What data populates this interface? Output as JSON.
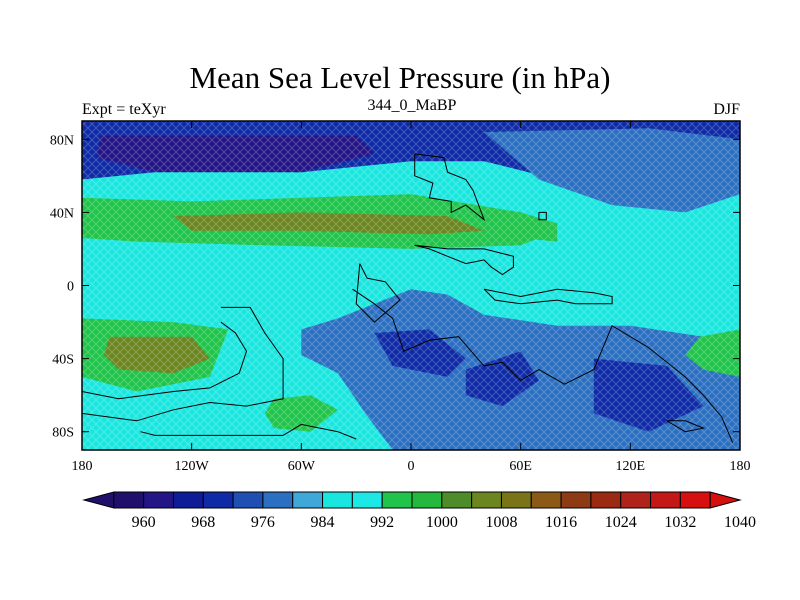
{
  "title": "Mean Sea Level Pressure (in hPa)",
  "left_string": "Expt = teXyr",
  "center_string": "344_0_MaBP",
  "right_string": "DJF",
  "map": {
    "projection": "cylindrical-equidistant",
    "lon_range": [
      -180,
      180
    ],
    "lat_range": [
      -90,
      90
    ],
    "x_ticks": [
      {
        "lon": -180,
        "label": "180"
      },
      {
        "lon": -120,
        "label": "120W"
      },
      {
        "lon": -60,
        "label": "60W"
      },
      {
        "lon": 0,
        "label": "0"
      },
      {
        "lon": 60,
        "label": "60E"
      },
      {
        "lon": 120,
        "label": "120E"
      },
      {
        "lon": 180,
        "label": "180"
      }
    ],
    "y_ticks": [
      {
        "lat": 80,
        "label": "80N"
      },
      {
        "lat": 40,
        "label": "40N"
      },
      {
        "lat": 0,
        "label": "0"
      },
      {
        "lat": -40,
        "label": "40S"
      },
      {
        "lat": -80,
        "label": "80S"
      }
    ]
  },
  "colorbar": {
    "colors": [
      "#21106b",
      "#231586",
      "#0f1c98",
      "#0e2aa6",
      "#1f4fb3",
      "#2b6fc1",
      "#40a8d8",
      "#19e6df",
      "#1ee8e6",
      "#20c44b",
      "#24b83f",
      "#4e8c2a",
      "#6b8520",
      "#7a7419",
      "#8b5a17",
      "#8e3a14",
      "#9a2a12",
      "#b0231a",
      "#c41717",
      "#d60f0f"
    ],
    "labels": [
      "960",
      "968",
      "976",
      "984",
      "992",
      "1000",
      "1008",
      "1016",
      "1024",
      "1032",
      "1040"
    ],
    "label_boundary_index": [
      2,
      4,
      6,
      8,
      10,
      12,
      14,
      16,
      18,
      20,
      22
    ]
  },
  "field": {
    "background_color": "#19e6df",
    "regions": [
      {
        "name": "arctic-low",
        "color": "#0e2aa6",
        "points": [
          [
            -180,
            90
          ],
          [
            180,
            90
          ],
          [
            180,
            60
          ],
          [
            120,
            54
          ],
          [
            80,
            58
          ],
          [
            40,
            68
          ],
          [
            0,
            68
          ],
          [
            -60,
            62
          ],
          [
            -120,
            64
          ],
          [
            -180,
            58
          ]
        ]
      },
      {
        "name": "arctic-deep-low",
        "color": "#231586",
        "points": [
          [
            -170,
            82
          ],
          [
            -30,
            82
          ],
          [
            -20,
            72
          ],
          [
            -60,
            62
          ],
          [
            -140,
            62
          ],
          [
            -172,
            70
          ]
        ]
      },
      {
        "name": "north-pacific-blue",
        "color": "#2b6fc1",
        "points": [
          [
            40,
            84
          ],
          [
            130,
            86
          ],
          [
            180,
            80
          ],
          [
            180,
            50
          ],
          [
            150,
            40
          ],
          [
            110,
            44
          ],
          [
            70,
            58
          ]
        ]
      },
      {
        "name": "northern-subtropical-high",
        "color": "#20c44b",
        "points": [
          [
            -180,
            48
          ],
          [
            -120,
            46
          ],
          [
            -60,
            48
          ],
          [
            0,
            50
          ],
          [
            60,
            40
          ],
          [
            80,
            30
          ],
          [
            60,
            22
          ],
          [
            0,
            20
          ],
          [
            -80,
            22
          ],
          [
            -150,
            24
          ],
          [
            -180,
            26
          ]
        ]
      },
      {
        "name": "northern-high-core",
        "color": "#6b8520",
        "points": [
          [
            -130,
            38
          ],
          [
            -60,
            40
          ],
          [
            20,
            38
          ],
          [
            40,
            30
          ],
          [
            10,
            28
          ],
          [
            -60,
            30
          ],
          [
            -120,
            30
          ]
        ]
      },
      {
        "name": "southern-subtropical-high-west",
        "color": "#20c44b",
        "points": [
          [
            -180,
            -18
          ],
          [
            -130,
            -20
          ],
          [
            -100,
            -24
          ],
          [
            -110,
            -50
          ],
          [
            -150,
            -58
          ],
          [
            -180,
            -50
          ]
        ]
      },
      {
        "name": "southern-high-core",
        "color": "#6b8520",
        "points": [
          [
            -165,
            -28
          ],
          [
            -120,
            -28
          ],
          [
            -110,
            -40
          ],
          [
            -130,
            -48
          ],
          [
            -160,
            -46
          ],
          [
            -168,
            -38
          ]
        ]
      },
      {
        "name": "south-atlantic-green",
        "color": "#20c44b",
        "points": [
          [
            -75,
            -62
          ],
          [
            -55,
            -60
          ],
          [
            -40,
            -68
          ],
          [
            -55,
            -80
          ],
          [
            -75,
            -78
          ],
          [
            -80,
            -70
          ]
        ]
      },
      {
        "name": "southern-low-belt",
        "color": "#2b6fc1",
        "points": [
          [
            -60,
            -24
          ],
          [
            -40,
            -18
          ],
          [
            -20,
            -10
          ],
          [
            0,
            -2
          ],
          [
            20,
            -5
          ],
          [
            40,
            -16
          ],
          [
            80,
            -22
          ],
          [
            120,
            -22
          ],
          [
            160,
            -28
          ],
          [
            180,
            -34
          ],
          [
            180,
            -90
          ],
          [
            -10,
            -90
          ],
          [
            -25,
            -70
          ],
          [
            -40,
            -48
          ],
          [
            -60,
            -38
          ]
        ]
      },
      {
        "name": "southern-deep-low-a",
        "color": "#0e2aa6",
        "points": [
          [
            -20,
            -26
          ],
          [
            10,
            -24
          ],
          [
            30,
            -40
          ],
          [
            20,
            -50
          ],
          [
            -10,
            -44
          ]
        ]
      },
      {
        "name": "southern-deep-low-b",
        "color": "#0e2aa6",
        "points": [
          [
            30,
            -46
          ],
          [
            60,
            -36
          ],
          [
            70,
            -52
          ],
          [
            50,
            -66
          ],
          [
            30,
            -60
          ]
        ]
      },
      {
        "name": "southern-deep-low-c",
        "color": "#0e2aa6",
        "points": [
          [
            100,
            -40
          ],
          [
            140,
            -44
          ],
          [
            160,
            -66
          ],
          [
            130,
            -80
          ],
          [
            100,
            -70
          ]
        ]
      },
      {
        "name": "southeast-pacific-high",
        "color": "#20c44b",
        "points": [
          [
            158,
            -28
          ],
          [
            180,
            -24
          ],
          [
            180,
            -50
          ],
          [
            160,
            -46
          ],
          [
            150,
            -38
          ]
        ]
      },
      {
        "name": "east-asian-green",
        "color": "#20c44b",
        "points": [
          [
            40,
            40
          ],
          [
            60,
            26
          ],
          [
            80,
            24
          ],
          [
            80,
            34
          ],
          [
            60,
            40
          ]
        ]
      }
    ],
    "coastlines": [
      [
        [
          2,
          72
        ],
        [
          2,
          60
        ],
        [
          12,
          56
        ],
        [
          10,
          48
        ],
        [
          22,
          46
        ],
        [
          22,
          40
        ],
        [
          30,
          44
        ],
        [
          40,
          36
        ],
        [
          34,
          52
        ],
        [
          30,
          58
        ],
        [
          20,
          62
        ],
        [
          18,
          70
        ],
        [
          2,
          72
        ]
      ],
      [
        [
          -32,
          -2
        ],
        [
          -20,
          -10
        ],
        [
          -10,
          -18
        ],
        [
          -4,
          -36
        ],
        [
          10,
          -30
        ],
        [
          26,
          -28
        ],
        [
          40,
          -44
        ],
        [
          50,
          -42
        ],
        [
          60,
          -52
        ],
        [
          70,
          -46
        ],
        [
          84,
          -54
        ],
        [
          100,
          -46
        ],
        [
          110,
          -22
        ],
        [
          120,
          -28
        ],
        [
          130,
          -34
        ],
        [
          150,
          -50
        ],
        [
          160,
          -60
        ],
        [
          170,
          -72
        ],
        [
          176,
          -86
        ]
      ],
      [
        [
          -104,
          -12
        ],
        [
          -88,
          -12
        ],
        [
          -80,
          -26
        ],
        [
          -70,
          -40
        ],
        [
          -70,
          -62
        ],
        [
          -90,
          -66
        ],
        [
          -110,
          -64
        ],
        [
          -130,
          -68
        ],
        [
          -150,
          -74
        ],
        [
          -180,
          -70
        ]
      ],
      [
        [
          -148,
          -80
        ],
        [
          -140,
          -82
        ],
        [
          -100,
          -82
        ],
        [
          -70,
          -82
        ],
        [
          -60,
          -76
        ],
        [
          -40,
          -80
        ],
        [
          -30,
          -84
        ]
      ],
      [
        [
          -180,
          -58
        ],
        [
          -160,
          -62
        ],
        [
          -130,
          -58
        ],
        [
          -110,
          -56
        ],
        [
          -94,
          -48
        ],
        [
          -90,
          -36
        ],
        [
          -96,
          -26
        ],
        [
          -104,
          -20
        ]
      ],
      [
        [
          -28,
          12
        ],
        [
          -24,
          4
        ],
        [
          -14,
          2
        ],
        [
          -6,
          -8
        ],
        [
          -20,
          -20
        ],
        [
          -30,
          -10
        ],
        [
          -28,
          12
        ]
      ],
      [
        [
          40,
          -2
        ],
        [
          60,
          -6
        ],
        [
          80,
          -2
        ],
        [
          100,
          -4
        ],
        [
          110,
          -6
        ],
        [
          110,
          -10
        ],
        [
          90,
          -10
        ],
        [
          80,
          -8
        ],
        [
          60,
          -10
        ],
        [
          46,
          -8
        ],
        [
          40,
          -2
        ]
      ],
      [
        [
          2,
          22
        ],
        [
          20,
          20
        ],
        [
          40,
          20
        ],
        [
          56,
          16
        ],
        [
          56,
          10
        ],
        [
          50,
          6
        ],
        [
          44,
          10
        ],
        [
          40,
          14
        ],
        [
          30,
          12
        ],
        [
          20,
          16
        ],
        [
          10,
          20
        ],
        [
          2,
          22
        ]
      ],
      [
        [
          140,
          -74
        ],
        [
          150,
          -74
        ],
        [
          160,
          -78
        ],
        [
          150,
          -80
        ],
        [
          140,
          -74
        ]
      ],
      [
        [
          70,
          40
        ],
        [
          74,
          40
        ],
        [
          74,
          36
        ],
        [
          70,
          36
        ],
        [
          70,
          40
        ]
      ]
    ]
  }
}
